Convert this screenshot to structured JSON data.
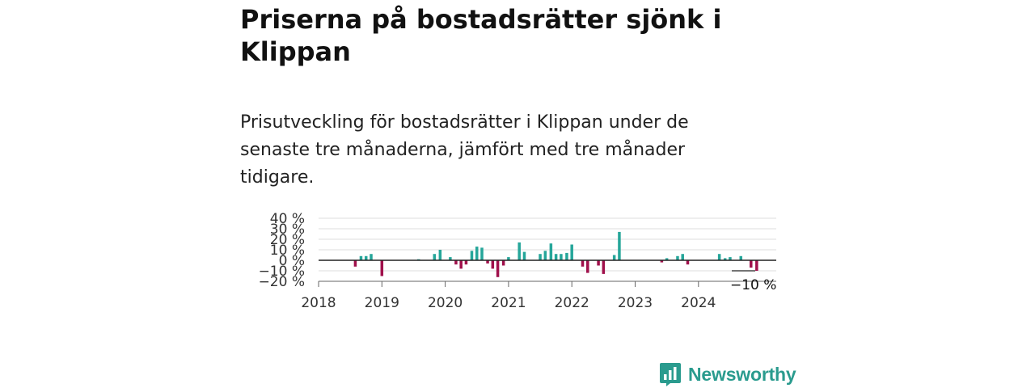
{
  "title": "Priserna på bostadsrätter sjönk i Klippan",
  "subtitle": "Prisutveckling för bostadsrätter i Klippan under de senaste tre månaderna, jämfört med tre månader tidigare.",
  "brand": {
    "name": "Newsworthy"
  },
  "colors": {
    "positive": "#26a69a",
    "negative": "#a0104b",
    "brand": "#2a9b8e"
  },
  "chart_data": {
    "type": "bar",
    "xlabel": "",
    "ylabel": "",
    "ylim": [
      -20,
      40
    ],
    "xlim": [
      2018,
      2024.92
    ],
    "grid": true,
    "legend": "none",
    "y_ticks": [
      {
        "value": 40,
        "label": "40 %"
      },
      {
        "value": 30,
        "label": "30 %"
      },
      {
        "value": 20,
        "label": "20 %"
      },
      {
        "value": 10,
        "label": "10 %"
      },
      {
        "value": 0,
        "label": "0 %"
      },
      {
        "value": -10,
        "label": "−10 %"
      },
      {
        "value": -20,
        "label": "−20 %"
      }
    ],
    "x_ticks": [
      {
        "value": 2018,
        "label": "2018"
      },
      {
        "value": 2019,
        "label": "2019"
      },
      {
        "value": 2020,
        "label": "2020"
      },
      {
        "value": 2021,
        "label": "2021"
      },
      {
        "value": 2022,
        "label": "2022"
      },
      {
        "value": 2023,
        "label": "2023"
      },
      {
        "value": 2024,
        "label": "2024"
      }
    ],
    "annotations": [
      {
        "x": 2024.83,
        "y": -10,
        "text": "−10 %"
      }
    ],
    "points": [
      {
        "x": 2018.58,
        "y": -6
      },
      {
        "x": 2018.67,
        "y": 4
      },
      {
        "x": 2018.75,
        "y": 4
      },
      {
        "x": 2018.83,
        "y": 6
      },
      {
        "x": 2019.0,
        "y": -15
      },
      {
        "x": 2019.58,
        "y": 1
      },
      {
        "x": 2019.83,
        "y": 6
      },
      {
        "x": 2019.92,
        "y": 10
      },
      {
        "x": 2020.08,
        "y": 3
      },
      {
        "x": 2020.17,
        "y": -4
      },
      {
        "x": 2020.25,
        "y": -8
      },
      {
        "x": 2020.33,
        "y": -4
      },
      {
        "x": 2020.42,
        "y": 9
      },
      {
        "x": 2020.5,
        "y": 13
      },
      {
        "x": 2020.58,
        "y": 12
      },
      {
        "x": 2020.67,
        "y": -3
      },
      {
        "x": 2020.75,
        "y": -8
      },
      {
        "x": 2020.83,
        "y": -16
      },
      {
        "x": 2020.92,
        "y": -5
      },
      {
        "x": 2021.0,
        "y": 3
      },
      {
        "x": 2021.17,
        "y": 17
      },
      {
        "x": 2021.25,
        "y": 8
      },
      {
        "x": 2021.5,
        "y": 6
      },
      {
        "x": 2021.58,
        "y": 9
      },
      {
        "x": 2021.67,
        "y": 16
      },
      {
        "x": 2021.75,
        "y": 6
      },
      {
        "x": 2021.83,
        "y": 6
      },
      {
        "x": 2021.92,
        "y": 7
      },
      {
        "x": 2022.0,
        "y": 15
      },
      {
        "x": 2022.17,
        "y": -6
      },
      {
        "x": 2022.25,
        "y": -12
      },
      {
        "x": 2022.42,
        "y": -5
      },
      {
        "x": 2022.5,
        "y": -13
      },
      {
        "x": 2022.67,
        "y": 5
      },
      {
        "x": 2022.75,
        "y": 27
      },
      {
        "x": 2023.42,
        "y": -2
      },
      {
        "x": 2023.5,
        "y": 2
      },
      {
        "x": 2023.67,
        "y": 4
      },
      {
        "x": 2023.75,
        "y": 6
      },
      {
        "x": 2023.83,
        "y": -4
      },
      {
        "x": 2024.33,
        "y": 6
      },
      {
        "x": 2024.42,
        "y": 2
      },
      {
        "x": 2024.5,
        "y": 3
      },
      {
        "x": 2024.67,
        "y": 4
      },
      {
        "x": 2024.83,
        "y": -7
      },
      {
        "x": 2024.92,
        "y": -10
      }
    ]
  }
}
